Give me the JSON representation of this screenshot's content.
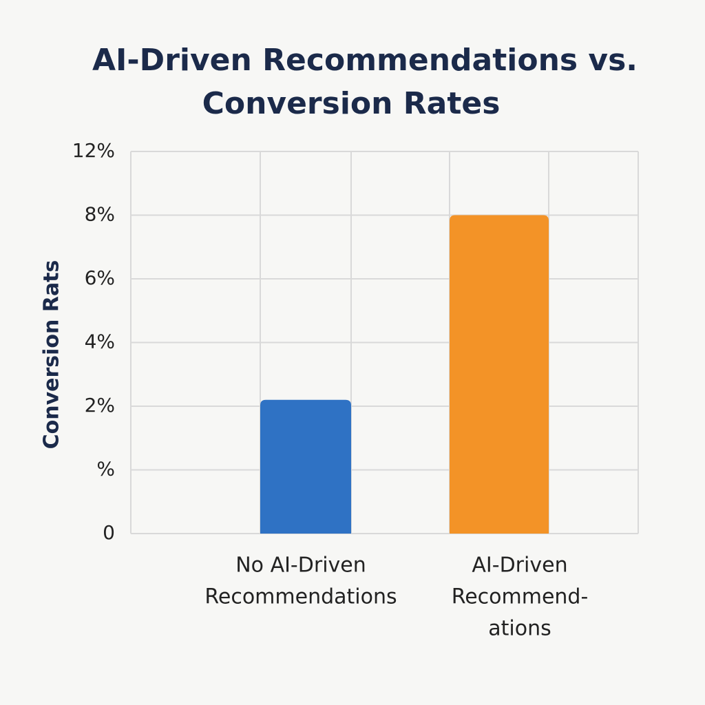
{
  "chart_data": {
    "type": "bar",
    "title": [
      "AI-Driven Recommendations vs.",
      "Conversion Rates"
    ],
    "y_label": "Conversion Rats",
    "categories": [
      [
        "No AI-Driven",
        "Recommendations"
      ],
      [
        "AI-Driven",
        "Recommend-",
        "ations"
      ]
    ],
    "values": [
      2.2,
      8
    ],
    "colors": [
      "#2f72c4",
      "#f39327"
    ],
    "ylim": [
      0,
      12
    ],
    "yticks": [
      0,
      {
        "value": 1,
        "label": "%"
      },
      {
        "value": 2,
        "label": "2%"
      },
      {
        "value": 4,
        "label": "4%"
      },
      {
        "value": 6,
        "label": "6%"
      },
      {
        "value": 8,
        "label": "8%"
      },
      {
        "value": 12,
        "label": "12%"
      }
    ],
    "grid": true
  }
}
